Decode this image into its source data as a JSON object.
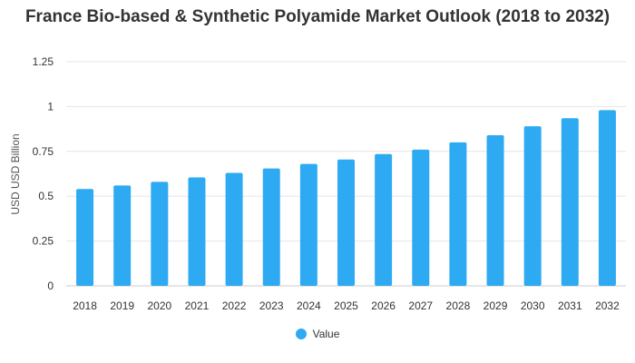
{
  "chart_data": {
    "type": "bar",
    "title": "France Bio-based & Synthetic Polyamide Market Outlook (2018 to 2032)",
    "xlabel": "",
    "ylabel": "USD USD Billion",
    "categories": [
      "2018",
      "2019",
      "2020",
      "2021",
      "2022",
      "2023",
      "2024",
      "2025",
      "2026",
      "2027",
      "2028",
      "2029",
      "2030",
      "2031",
      "2032"
    ],
    "series": [
      {
        "name": "Value",
        "color": "#2eaaf2",
        "values": [
          0.54,
          0.56,
          0.58,
          0.605,
          0.63,
          0.655,
          0.68,
          0.705,
          0.735,
          0.76,
          0.8,
          0.84,
          0.89,
          0.935,
          0.98
        ]
      }
    ],
    "ylim": [
      0,
      1.25
    ],
    "yticks": [
      0,
      0.25,
      0.5,
      0.75,
      1,
      1.25
    ],
    "ytick_labels": [
      "0",
      "0.25",
      "0.5",
      "0.75",
      "1",
      "1.25"
    ],
    "grid": true,
    "legend_position": "bottom"
  }
}
